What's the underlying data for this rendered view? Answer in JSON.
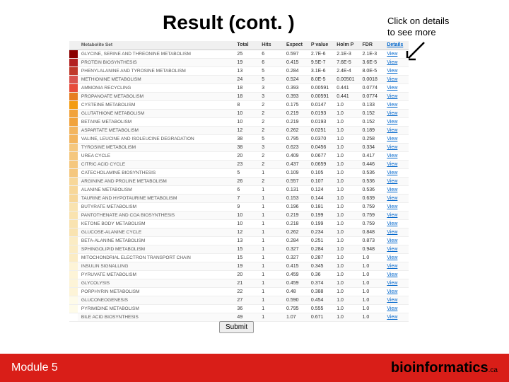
{
  "title": "Result (cont. )",
  "hint_line1": "Click on details",
  "hint_line2": "to see more",
  "headers": {
    "h0": "",
    "h1": "Metabolite Set",
    "h2": "Total",
    "h3": "Hits",
    "h4": "Expect",
    "h5": "P value",
    "h6": "Holm P",
    "h7": "FDR",
    "h8": "Details"
  },
  "rows": [
    {
      "c": "#8b0000",
      "n": "GLYCINE, SERINE AND THREONINE METABOLISM",
      "t": "25",
      "h": "6",
      "e": "0.597",
      "p": "2.7E-6",
      "hp": "2.1E-3",
      "f": "2.1E-3",
      "v": "View"
    },
    {
      "c": "#b22222",
      "n": "PROTEIN BIOSYNTHESIS",
      "t": "19",
      "h": "6",
      "e": "0.415",
      "p": "9.5E-7",
      "hp": "7.6E-5",
      "f": "3.6E-5",
      "v": "View"
    },
    {
      "c": "#c0392b",
      "n": "PHENYLALANINE AND TYROSINE METABOLISM",
      "t": "13",
      "h": "5",
      "e": "0.284",
      "p": "3.1E-6",
      "hp": "2.4E-4",
      "f": "8.0E-5",
      "v": "View"
    },
    {
      "c": "#d9534f",
      "n": "METHIONINE METABOLISM",
      "t": "24",
      "h": "5",
      "e": "0.524",
      "p": "8.0E-5",
      "hp": "0.00501",
      "f": "0.0018",
      "v": "View"
    },
    {
      "c": "#e74c3c",
      "n": "AMMONIA RECYCLING",
      "t": "18",
      "h": "3",
      "e": "0.393",
      "p": "0.00591",
      "hp": "0.441",
      "f": "0.0774",
      "v": "View"
    },
    {
      "c": "#e67e22",
      "n": "PROPANOATE METABOLISM",
      "t": "18",
      "h": "3",
      "e": "0.393",
      "p": "0.00591",
      "hp": "0.441",
      "f": "0.0774",
      "v": "View"
    },
    {
      "c": "#f39c12",
      "n": "CYSTEINE METABOLISM",
      "t": "8",
      "h": "2",
      "e": "0.175",
      "p": "0.0147",
      "hp": "1.0",
      "f": "0.133",
      "v": "View"
    },
    {
      "c": "#f1a33c",
      "n": "GLUTATHIONE METABOLISM",
      "t": "10",
      "h": "2",
      "e": "0.219",
      "p": "0.0193",
      "hp": "1.0",
      "f": "0.152",
      "v": "View"
    },
    {
      "c": "#f1a33c",
      "n": "BETAINE METABOLISM",
      "t": "10",
      "h": "2",
      "e": "0.219",
      "p": "0.0193",
      "hp": "1.0",
      "f": "0.152",
      "v": "View"
    },
    {
      "c": "#f3b55e",
      "n": "ASPARTATE METABOLISM",
      "t": "12",
      "h": "2",
      "e": "0.262",
      "p": "0.0251",
      "hp": "1.0",
      "f": "0.189",
      "v": "View"
    },
    {
      "c": "#f3b55e",
      "n": "VALINE, LEUCINE AND ISOLEUCINE DEGRADATION",
      "t": "38",
      "h": "5",
      "e": "0.795",
      "p": "0.0370",
      "hp": "1.0",
      "f": "0.258",
      "v": "View"
    },
    {
      "c": "#f5c77e",
      "n": "TYROSINE METABOLISM",
      "t": "38",
      "h": "3",
      "e": "0.623",
      "p": "0.0456",
      "hp": "1.0",
      "f": "0.334",
      "v": "View"
    },
    {
      "c": "#f5c77e",
      "n": "UREA CYCLE",
      "t": "20",
      "h": "2",
      "e": "0.409",
      "p": "0.0677",
      "hp": "1.0",
      "f": "0.417",
      "v": "View"
    },
    {
      "c": "#f5c77e",
      "n": "CITRIC ACID CYCLE",
      "t": "23",
      "h": "2",
      "e": "0.437",
      "p": "0.0659",
      "hp": "1.0",
      "f": "0.446",
      "v": "View"
    },
    {
      "c": "#f5c77e",
      "n": "CATECHOLAMINE BIOSYNTHESIS",
      "t": "5",
      "h": "1",
      "e": "0.109",
      "p": "0.105",
      "hp": "1.0",
      "f": "0.536",
      "v": "View"
    },
    {
      "c": "#f7d799",
      "n": "ARGININE AND PROLINE METABOLISM",
      "t": "26",
      "h": "2",
      "e": "0.557",
      "p": "0.107",
      "hp": "1.0",
      "f": "0.536",
      "v": "View"
    },
    {
      "c": "#f7d799",
      "n": "ALANINE METABOLISM",
      "t": "6",
      "h": "1",
      "e": "0.131",
      "p": "0.124",
      "hp": "1.0",
      "f": "0.536",
      "v": "View"
    },
    {
      "c": "#f7d799",
      "n": "TAURINE AND HYPOTAURINE METABOLISM",
      "t": "7",
      "h": "1",
      "e": "0.153",
      "p": "0.144",
      "hp": "1.0",
      "f": "0.639",
      "v": "View"
    },
    {
      "c": "#f9e3b0",
      "n": "BUTYRATE METABOLISM",
      "t": "9",
      "h": "1",
      "e": "0.196",
      "p": "0.181",
      "hp": "1.0",
      "f": "0.759",
      "v": "View"
    },
    {
      "c": "#f9e3b0",
      "n": "PANTOTHENATE AND COA BIOSYNTHESIS",
      "t": "10",
      "h": "1",
      "e": "0.219",
      "p": "0.199",
      "hp": "1.0",
      "f": "0.759",
      "v": "View"
    },
    {
      "c": "#f9e3b0",
      "n": "KETONE BODY METABOLISM",
      "t": "10",
      "h": "1",
      "e": "0.218",
      "p": "0.199",
      "hp": "1.0",
      "f": "0.759",
      "v": "View"
    },
    {
      "c": "#f9e3b0",
      "n": "GLUCOSE-ALANINE CYCLE",
      "t": "12",
      "h": "1",
      "e": "0.262",
      "p": "0.234",
      "hp": "1.0",
      "f": "0.848",
      "v": "View"
    },
    {
      "c": "#fbecc4",
      "n": "BETA-ALANINE METABOLISM",
      "t": "13",
      "h": "1",
      "e": "0.284",
      "p": "0.251",
      "hp": "1.0",
      "f": "0.873",
      "v": "View"
    },
    {
      "c": "#fbecc4",
      "n": "SPHINGOLIPID METABOLISM",
      "t": "15",
      "h": "1",
      "e": "0.327",
      "p": "0.284",
      "hp": "1.0",
      "f": "0.948",
      "v": "View"
    },
    {
      "c": "#fbecc4",
      "n": "MITOCHONDRIAL ELECTRON TRANSPORT CHAIN",
      "t": "15",
      "h": "1",
      "e": "0.327",
      "p": "0.287",
      "hp": "1.0",
      "f": "1.0",
      "v": "View"
    },
    {
      "c": "#fdf4d7",
      "n": "INSULIN SIGNALLING",
      "t": "19",
      "h": "1",
      "e": "0.415",
      "p": "0.345",
      "hp": "1.0",
      "f": "1.0",
      "v": "View"
    },
    {
      "c": "#fdf4d7",
      "n": "PYRUVATE METABOLISM",
      "t": "20",
      "h": "1",
      "e": "0.459",
      "p": "0.36",
      "hp": "1.0",
      "f": "1.0",
      "v": "View"
    },
    {
      "c": "#fdf4d7",
      "n": "GLYCOLYSIS",
      "t": "21",
      "h": "1",
      "e": "0.459",
      "p": "0.374",
      "hp": "1.0",
      "f": "1.0",
      "v": "View"
    },
    {
      "c": "#fdf4d7",
      "n": "PORPHYRIN METABOLISM",
      "t": "22",
      "h": "1",
      "e": "0.48",
      "p": "0.388",
      "hp": "1.0",
      "f": "1.0",
      "v": "View"
    },
    {
      "c": "#fefbe9",
      "n": "GLUCONEOGENESIS",
      "t": "27",
      "h": "1",
      "e": "0.590",
      "p": "0.454",
      "hp": "1.0",
      "f": "1.0",
      "v": "View"
    },
    {
      "c": "#fefbe9",
      "n": "PYRIMIDINE METABOLISM",
      "t": "36",
      "h": "1",
      "e": "0.795",
      "p": "0.555",
      "hp": "1.0",
      "f": "1.0",
      "v": "View"
    },
    {
      "c": "#ffffff",
      "n": "BILE ACID BIOSYNTHESIS",
      "t": "49",
      "h": "1",
      "e": "1.07",
      "p": "0.671",
      "hp": "1.0",
      "f": "1.0",
      "v": "View"
    }
  ],
  "submit_label": "Submit",
  "footer_left": "Module 5",
  "footer_right": "bioinformatics",
  "footer_ca": ".ca",
  "view_label": "View"
}
